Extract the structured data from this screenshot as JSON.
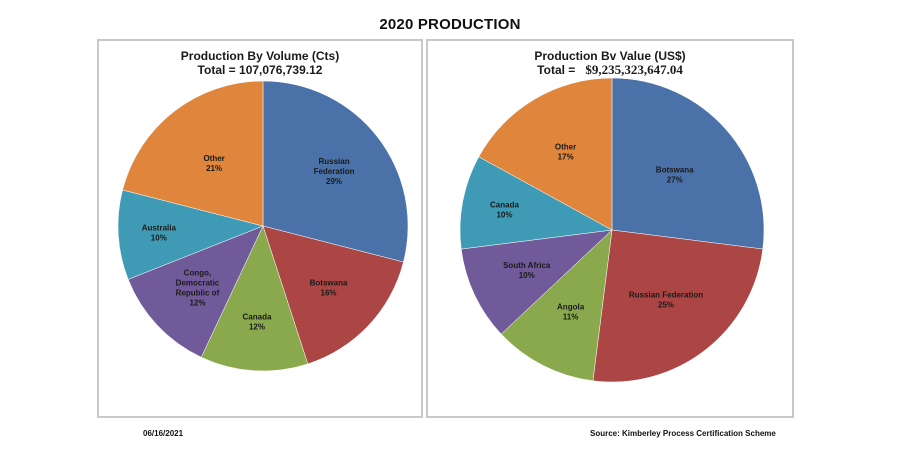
{
  "page": {
    "title": "2020 PRODUCTION",
    "date": "06/16/2021",
    "source": "Source: Kimberley Process Certification Scheme"
  },
  "chart_data": [
    {
      "type": "pie",
      "title": "Production By Volume (Cts)",
      "subtitle_label": "Total =",
      "subtitle_value": "107,076,739.12",
      "start_angle": "12 o'clock",
      "direction": "clockwise",
      "slices": [
        {
          "label_lines": [
            "Russian",
            "Federation"
          ],
          "label": "Russian Federation",
          "pct_text": "29%",
          "value": 29,
          "color": "#4a72a8"
        },
        {
          "label_lines": [
            "Botswana"
          ],
          "label": "Botswana",
          "pct_text": "16%",
          "value": 16,
          "color": "#ab4645"
        },
        {
          "label_lines": [
            "Canada"
          ],
          "label": "Canada",
          "pct_text": "12%",
          "value": 12,
          "color": "#8aa84c"
        },
        {
          "label_lines": [
            "Congo,",
            "Democratic",
            "Republic of"
          ],
          "label": "Congo, Democratic Republic of",
          "pct_text": "12%",
          "value": 12,
          "color": "#715a9a"
        },
        {
          "label_lines": [
            "Australia"
          ],
          "label": "Australia",
          "pct_text": "10%",
          "value": 10,
          "color": "#3f9bb5"
        },
        {
          "label_lines": [
            "Other"
          ],
          "label": "Other",
          "pct_text": "21%",
          "value": 21,
          "color": "#e0853c"
        }
      ]
    },
    {
      "type": "pie",
      "title": "Production Bv Value (US$)",
      "subtitle_label": "Total =",
      "subtitle_value": "$9,235,323,647.04",
      "start_angle": "12 o'clock",
      "direction": "clockwise",
      "slices": [
        {
          "label_lines": [
            "Botswana"
          ],
          "label": "Botswana",
          "pct_text": "27%",
          "value": 27,
          "color": "#4a72a8"
        },
        {
          "label_lines": [
            "Russian Federation"
          ],
          "label": "Russian Federation",
          "pct_text": "25%",
          "value": 25,
          "color": "#ab4645"
        },
        {
          "label_lines": [
            "Angola"
          ],
          "label": "Angola",
          "pct_text": "11%",
          "value": 11,
          "color": "#8aa84c"
        },
        {
          "label_lines": [
            "South Africa"
          ],
          "label": "South Africa",
          "pct_text": "10%",
          "value": 10,
          "color": "#715a9a"
        },
        {
          "label_lines": [
            "Canada"
          ],
          "label": "Canada",
          "pct_text": "10%",
          "value": 10,
          "color": "#3f9bb5"
        },
        {
          "label_lines": [
            "Other"
          ],
          "label": "Other",
          "pct_text": "17%",
          "value": 17,
          "color": "#e0853c"
        }
      ]
    }
  ]
}
